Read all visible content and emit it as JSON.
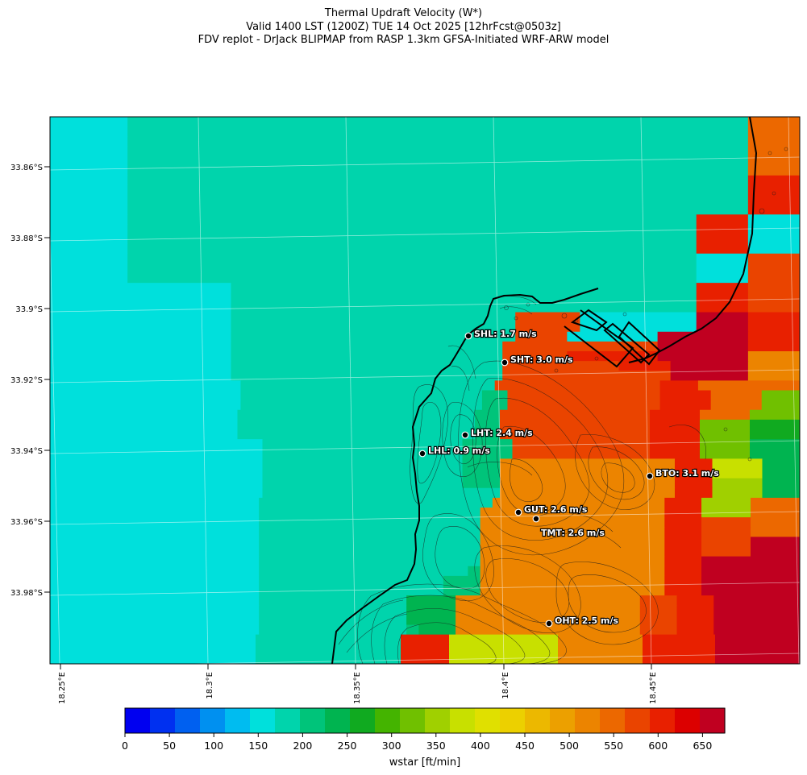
{
  "title": {
    "line1": "Thermal Updraft Velocity (W*)",
    "line2": "Valid 1400 LST (1200Z) TUE 14 Oct 2025 [12hrFcst@0503z]",
    "line3": "FDV replot - DrJack BLIPMAP from RASP 1.3km GFSA-Initiated WRF-ARW model"
  },
  "lat_labels": [
    "33.86°S",
    "33.88°S",
    "33.9°S",
    "33.92°S",
    "33.94°S",
    "33.96°S",
    "33.98°S"
  ],
  "lon_labels": [
    "18.25°E",
    "18.3°E",
    "18.35°E",
    "18.4°E",
    "18.45°E"
  ],
  "sites": [
    {
      "id": "SHL",
      "label": "SHL: 1.7 m/s"
    },
    {
      "id": "SHT",
      "label": "SHT: 3.0 m/s"
    },
    {
      "id": "LHT",
      "label": "LHT: 2.4 m/s"
    },
    {
      "id": "LHL",
      "label": "LHL: 0.9 m/s"
    },
    {
      "id": "BTO",
      "label": "BTO: 3.1 m/s"
    },
    {
      "id": "GUT",
      "label": "GUT: 2.6 m/s"
    },
    {
      "id": "TMT",
      "label": "TMT: 2.6 m/s"
    },
    {
      "id": "OHT",
      "label": "OHT: 2.5 m/s"
    }
  ],
  "colorbar": {
    "label": "wstar [ft/min]",
    "ticks": [
      "0",
      "50",
      "100",
      "150",
      "200",
      "250",
      "300",
      "350",
      "400",
      "450",
      "500",
      "550",
      "600",
      "650"
    ],
    "colors": [
      "#0000f0",
      "#0030f0",
      "#0060f0",
      "#0090f0",
      "#00bcf0",
      "#00e0dc",
      "#00d4ac",
      "#00c47a",
      "#00b450",
      "#10aa20",
      "#44b400",
      "#70c000",
      "#a0d000",
      "#c8e000",
      "#e0e000",
      "#ecd000",
      "#ecb800",
      "#eca000",
      "#ec8400",
      "#ec6800",
      "#ea4400",
      "#e82000",
      "#dc0000",
      "#c00020"
    ]
  },
  "grid": [
    "1111112222222222222222222222222222222222222222222222229999",
    "1111112222222222222222222222222222222222222222222222229999",
    "1111112222222222222222222222222222222222222222222222229999",
    "1111112222222222222222222222222222222222222222222222229999",
    "1111112222222222222222222222222222222222222222222222229999",
    "1111112222222222222222222222222222222222222222222222229999",
    "111111222222222222222222222222222222222222222222222222CCCC",
    "111111222222222222222222222222222222222222222222222222CCCC",
    "111111222222222222222222222222222222222222222222222222CCCC",
    "111111222222222222222222222222222222222222222222222222CCCC",
    "11111122222222222222222222222222222222222222222222CCCC1111",
    "11111122222222222222222222222222222222222222222222CCCC1111",
    "11111122222222222222222222222222222222222222222222CCCC1111",
    "11111122222222222222222222222222222222222222222222CCCC1111",
    "111111222222222222222222222222222222222222222222221111BBBB",
    "111111222222222222222222222222222222222222222222221111BBBB",
    "111111222222222222222222222222222222222222222222221111BBBB",
    "11111111111111222222222222222222222222222222222222CCCCBBBB",
    "11111111111111222222222222222222222222222222222222CCCCBBBB",
    "11111111111111222222222222222222222222222222222222CCCCBBBB",
    "111111111111112222222222222222222222BBBBB111111111DDDDCCCC",
    "111111111111112222222222222222222222BBBBB111111111DDDDCCCC",
    "111111111111112222222222222222222222BBBB1111111DDDDDDDCCCC",
    "11111111111111222222222222222222222BBBBBBBBBBBBDDDDDDDCCCC",
    "11111111111111222222222222222222222BBBBBCCCCCCCDDDDDDDAAAA",
    "11111111111111222222222222222222222BBBBBBBBBCCCCDDDDDDAAAA",
    "11111111111111222222222222222222222BBBBBBBBBBBBBDDDDDDAAAA",
    "11111111111111122222222222222222222BBBBBBBBBBBBBCCC99999999",
    "111111111111111222222222222222222233BBBBBBBBBBBBCCCC9999888",
    "111111111111111222222222222222222233BBBBBBBBBBBBCCCC9999888",
    "111111111111111222222222222222222233BBBBBBBBBBBBCCCC99998888",
    "111111111111111222222222222222222233BBBBBBBBBBBBCCCC88885555",
    "111111111111111222222222222222222233BBBBBBBBBBBBCCCC88885555",
    "1111111111111111122222222222222223333BBBBBBBBBBBCCCC88884444",
    "1111111111111111122222222222222223333BBBBBBBBBBBCCCC88884444",
    "111111111111111112222222222222222333AAAAAAAAAAAAAACCC7777444",
    "111111111111111112222222222222222333AAAAAAAAAAAAAACCC7777444",
    "111111111111111112222222222222222333AAAAAAAAAAAAAACCC6666444",
    "111111111111111112222222222222222222AAAAAAAAAAAAAACCC6666444",
    "111111111111111112222222222222222222AAAAAAAAAAAAAACCC66669999",
    "11111111111111111222222222222222222AAAAAAAAAAAAAAACCC66669999",
    "11111111111111111222222222222222222AAAAAAAAAAAAAAACCCBBBB9999",
    "11111111111111111222222222222222222AAAAAAAAAAAAAAACCCBBBB9999",
    "11111111111111111222222222222222222AAAAAAAAAAAAAAACCCBBBBDDDD",
    "11111111111111111222222222222222222AAAAAAAAAAAAAAACCCBBBBDDDD",
    "11111111111111111222222222222222222AAAAAAAAAAAAAAACCCDDDDDDDD",
    "11111111111111111222222222222222223AAAAAAAAAAAAAAACCCDDDDDDDD",
    "11111111111111111222222222222222333AAAAAAAAAAAAAAACCCDDDDDDDD",
    "11111111111111111222222222222222333AAAAAAAAAAAAAAACCCDDDDDDDD",
    "111111111111111112222222222224444AAAAAAAAAAAAAAABBBCCCDDDDDDD",
    "111111111111111112222222222224444AAAAAAAAAAAAAAABBBCCCDDDDDDD",
    "111111111111111112222222222224444AAAAAAAAAAAAAAABBBCCCDDDDDDD",
    "111111111111111112222222222223444AAAAAAAAAAAAAAABBBCCCDDDDDDD",
    "11111111111111111222222222222CCCC777777777AAAAAAACCCCCCDDDDDDD",
    "11111111111111111222222222222CCCC777777777AAAAAAACCCCCCDDDDDDD",
    "11111111111111111222222222222CCCC777777777AAAAAAACCCCCCDDDDDDD"
  ]
}
